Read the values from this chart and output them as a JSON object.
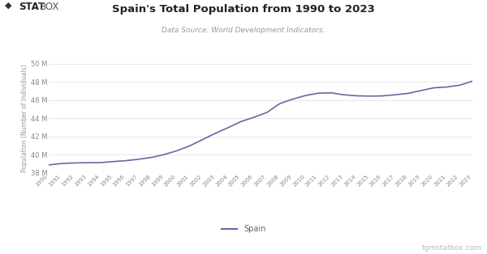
{
  "title": "Spain's Total Population from 1990 to 2023",
  "subtitle": "Data Source: World Development Indicators.",
  "ylabel": "Population (Number of Individuals)",
  "line_color": "#7B5EA7",
  "background_color": "#ffffff",
  "legend_label": "Spain",
  "watermark": "tgmstatbox.com",
  "years": [
    1990,
    1991,
    1992,
    1993,
    1994,
    1995,
    1996,
    1997,
    1998,
    1999,
    2000,
    2001,
    2002,
    2003,
    2004,
    2005,
    2006,
    2007,
    2008,
    2009,
    2010,
    2011,
    2012,
    2013,
    2014,
    2015,
    2016,
    2017,
    2018,
    2019,
    2020,
    2021,
    2022,
    2023
  ],
  "population": [
    38851569,
    39013834,
    39074207,
    39101370,
    39104265,
    39223427,
    39323033,
    39480093,
    39680596,
    40003669,
    40419392,
    40962764,
    41648738,
    42344252,
    42970869,
    43635208,
    44095523,
    44625083,
    45594004,
    46080120,
    46482400,
    46742697,
    46772816,
    46558402,
    46448820,
    46418269,
    46440059,
    46568246,
    46722980,
    47026208,
    47329981,
    47418285,
    47611386,
    48059777
  ],
  "ylim_min": 38000000,
  "ylim_max": 50000000,
  "yticks": [
    38000000,
    40000000,
    42000000,
    44000000,
    46000000,
    48000000,
    50000000
  ]
}
